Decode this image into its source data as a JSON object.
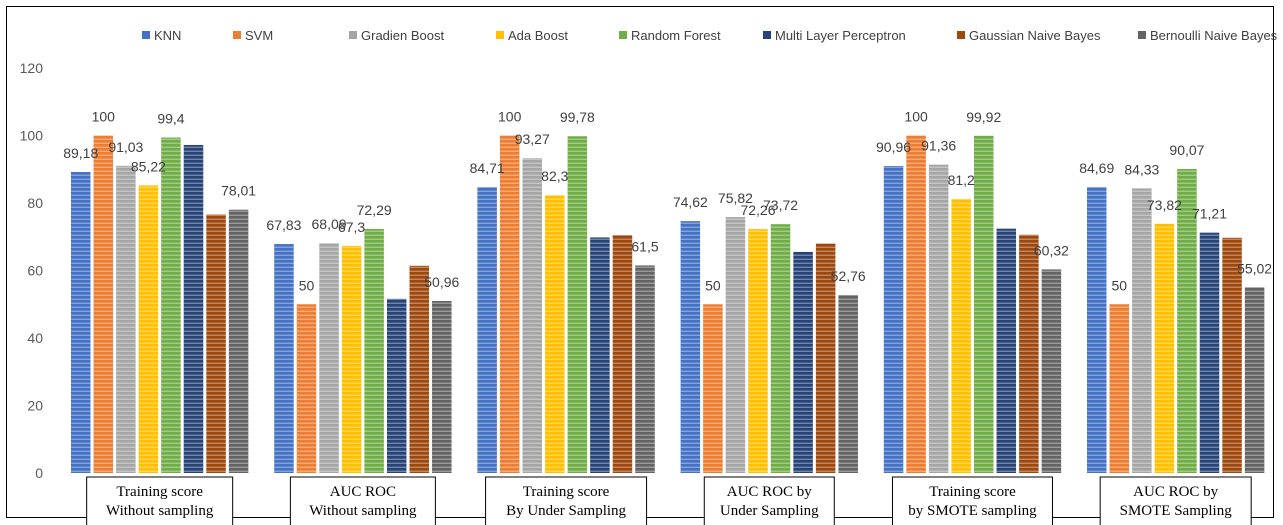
{
  "chart_data": {
    "type": "bar",
    "ylim": [
      0,
      120
    ],
    "yticks": [
      0,
      20,
      40,
      60,
      80,
      100,
      120
    ],
    "legend_position": "top",
    "grid": false,
    "categories": [
      [
        "Training score",
        "Without sampling"
      ],
      [
        "AUC ROC",
        "Without sampling"
      ],
      [
        "Training score",
        "By Under Sampling"
      ],
      [
        "AUC ROC by",
        "Under Sampling"
      ],
      [
        "Training score",
        "by SMOTE sampling"
      ],
      [
        "AUC ROC by",
        "SMOTE Sampling"
      ]
    ],
    "series": [
      {
        "name": "KNN",
        "color": "#4472C4",
        "values": [
          89.18,
          67.83,
          84.71,
          74.62,
          90.96,
          84.69
        ],
        "labels": [
          "89,18",
          "67,83",
          "84,71",
          "74,62",
          "90,96",
          "84,69"
        ]
      },
      {
        "name": "SVM",
        "color": "#ED7D31",
        "values": [
          100,
          50,
          100,
          50,
          100,
          50
        ],
        "labels": [
          "100",
          "50",
          "100",
          "50",
          "100",
          "50"
        ]
      },
      {
        "name": "Gradien Boost",
        "color": "#A5A5A5",
        "values": [
          91.03,
          68.09,
          93.27,
          75.82,
          91.36,
          84.33
        ],
        "labels": [
          "91,03",
          "68,09",
          "93,27",
          "75,82",
          "91,36",
          "84,33"
        ]
      },
      {
        "name": "Ada Boost",
        "color": "#FFC000",
        "values": [
          85.22,
          67.3,
          82.3,
          72.26,
          81.2,
          73.82
        ],
        "labels": [
          "85,22",
          "67,3",
          "82,3",
          "72,26",
          "81,2",
          "73,82"
        ]
      },
      {
        "name": "Random Forest",
        "color": "#70AD47",
        "values": [
          99.4,
          72.29,
          99.78,
          73.72,
          99.92,
          90.07
        ],
        "labels": [
          "99,4",
          "72,29",
          "99,78",
          "73,72",
          "99,92",
          "90,07"
        ]
      },
      {
        "name": "Multi Layer Perceptron",
        "color": "#264478",
        "values": [
          97.2,
          51.6,
          69.8,
          65.5,
          72.4,
          71.21
        ],
        "labels": [
          "",
          "",
          "",
          "",
          "",
          "71,21"
        ]
      },
      {
        "name": "Gaussian Naive Bayes",
        "color": "#9E480E",
        "values": [
          76.6,
          61.4,
          70.5,
          68.0,
          70.6,
          69.7
        ],
        "labels": [
          "",
          "",
          "",
          "",
          "",
          ""
        ]
      },
      {
        "name": "Bernoulli Naive Bayes",
        "color": "#636363",
        "values": [
          78.01,
          50.96,
          61.5,
          52.76,
          60.32,
          55.02
        ],
        "labels": [
          "78,01",
          "50,96",
          "61,5",
          "52,76",
          "60,32",
          "55,02"
        ]
      }
    ]
  }
}
